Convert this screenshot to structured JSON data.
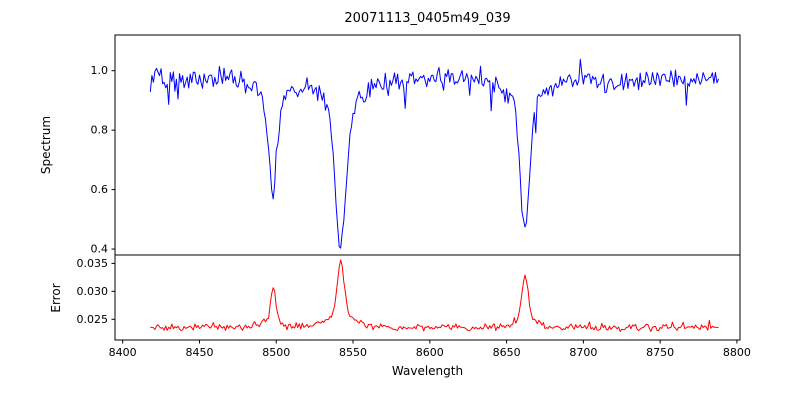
{
  "chart_data": {
    "type": "line",
    "title": "20071113_0405m49_039",
    "xlabel": "Wavelength",
    "xlim": [
      8395,
      8802
    ],
    "x_range": [
      8418,
      8788
    ],
    "x_ticks": [
      8400,
      8450,
      8500,
      8550,
      8600,
      8650,
      8700,
      8750,
      8800
    ],
    "x_tick_labels": [
      "8400",
      "8450",
      "8500",
      "8550",
      "8600",
      "8650",
      "8700",
      "8750",
      "8800"
    ],
    "grid": false,
    "legend": "none",
    "panels": [
      {
        "name": "spectrum",
        "ylabel": "Spectrum",
        "ylim": [
          0.38,
          1.12
        ],
        "y_ticks": [
          0.4,
          0.6,
          0.8,
          1.0
        ],
        "y_tick_labels": [
          "0.4",
          "0.6",
          "0.8",
          "1.0"
        ],
        "series": {
          "name": "spectrum",
          "color": "#0000ff",
          "continuum": 0.97,
          "noise_sigma": 0.018,
          "absorption_lines": [
            {
              "center": 8498,
              "min_value": 0.57,
              "width": 2.5
            },
            {
              "center": 8542,
              "min_value": 0.41,
              "width": 3.5
            },
            {
              "center": 8662,
              "min_value": 0.46,
              "width": 2.8
            }
          ]
        }
      },
      {
        "name": "error",
        "ylabel": "Error",
        "ylim": [
          0.0213,
          0.0365
        ],
        "y_ticks": [
          0.025,
          0.03,
          0.035
        ],
        "y_tick_labels": [
          "0.025",
          "0.030",
          "0.035"
        ],
        "series": {
          "name": "error",
          "color": "#ff0000",
          "baseline": 0.0235,
          "noise_sigma": 0.0003,
          "peaks": [
            {
              "center": 8498,
              "max_value": 0.0305,
              "width": 1.6
            },
            {
              "center": 8542,
              "max_value": 0.0353,
              "width": 2.4
            },
            {
              "center": 8662,
              "max_value": 0.033,
              "width": 2.0
            }
          ]
        }
      }
    ]
  }
}
